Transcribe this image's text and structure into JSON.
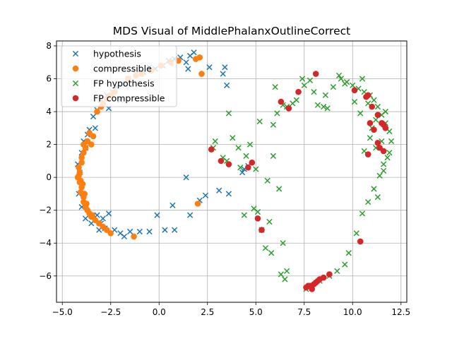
{
  "chart_data": {
    "type": "scatter",
    "title": "MDS Visual of MiddlePhalanxOutlineCorrect",
    "xlabel": "",
    "ylabel": "",
    "xlim": [
      -5.3,
      12.8
    ],
    "ylim": [
      -7.6,
      8.3
    ],
    "xticks": [
      -5.0,
      -2.5,
      0.0,
      2.5,
      5.0,
      7.5,
      10.0,
      12.5
    ],
    "xtick_labels": [
      "−5.0",
      "−2.5",
      "0.0",
      "2.5",
      "5.0",
      "7.5",
      "10.0",
      "12.5"
    ],
    "yticks": [
      -6,
      -4,
      -2,
      0,
      2,
      4,
      6,
      8
    ],
    "ytick_labels": [
      "−6",
      "−4",
      "−2",
      "0",
      "2",
      "4",
      "6",
      "8"
    ],
    "grid": true,
    "legend_position": "top-left",
    "series": [
      {
        "name": "hypothesis",
        "marker": "x",
        "color": "#1f77b4",
        "points": [
          [
            -4.2,
            0.8
          ],
          [
            -4.1,
            0.3
          ],
          [
            -4.0,
            -0.5
          ],
          [
            -4.15,
            -1.0
          ],
          [
            -4.0,
            1.5
          ],
          [
            -3.8,
            1.8
          ],
          [
            -3.9,
            2.2
          ],
          [
            -3.7,
            2.6
          ],
          [
            -3.6,
            2.9
          ],
          [
            -3.3,
            3.0
          ],
          [
            -3.4,
            3.7
          ],
          [
            -3.2,
            4.1
          ],
          [
            -3.0,
            4.7
          ],
          [
            -2.7,
            5.0
          ],
          [
            -2.6,
            4.2
          ],
          [
            -2.4,
            5.2
          ],
          [
            -2.2,
            5.5
          ],
          [
            -2.0,
            4.7
          ],
          [
            -1.9,
            5.7
          ],
          [
            -1.6,
            6.0
          ],
          [
            -1.2,
            6.3
          ],
          [
            -0.8,
            6.4
          ],
          [
            -0.5,
            6.7
          ],
          [
            -0.2,
            6.6
          ],
          [
            0.2,
            6.8
          ],
          [
            0.5,
            7.1
          ],
          [
            0.8,
            7.2
          ],
          [
            1.1,
            7.3
          ],
          [
            1.4,
            7.0
          ],
          [
            1.6,
            7.4
          ],
          [
            1.8,
            7.6
          ],
          [
            1.5,
            6.6
          ],
          [
            2.6,
            6.7
          ],
          [
            3.3,
            6.3
          ],
          [
            3.4,
            6.7
          ],
          [
            3.5,
            5.6
          ],
          [
            -3.8,
            -2.5
          ],
          [
            -3.5,
            -2.8
          ],
          [
            -3.2,
            -2.3
          ],
          [
            -3.0,
            -2.8
          ],
          [
            -2.8,
            -3.1
          ],
          [
            -2.6,
            -2.2
          ],
          [
            -2.3,
            -3.2
          ],
          [
            -2.0,
            -3.4
          ],
          [
            -1.8,
            -3.6
          ],
          [
            -1.5,
            -3.3
          ],
          [
            -1.0,
            -3.3
          ],
          [
            -0.5,
            -3.3
          ],
          [
            -0.1,
            -2.3
          ],
          [
            0.3,
            -3.2
          ],
          [
            0.8,
            -3.2
          ],
          [
            0.7,
            -1.7
          ],
          [
            1.6,
            -2.3
          ],
          [
            1.4,
            0.0
          ],
          [
            2.1,
            -1.4
          ],
          [
            2.4,
            -1.1
          ],
          [
            3.1,
            -0.8
          ],
          [
            3.6,
            -1.0
          ],
          [
            4.3,
            0.3
          ],
          [
            4.4,
            0.5
          ],
          [
            4.6,
            0.7
          ],
          [
            -3.1,
            -3.2
          ],
          [
            -2.9,
            -2.5
          ],
          [
            -4.0,
            -1.8
          ]
        ]
      },
      {
        "name": "compressible",
        "marker": "o",
        "color": "#ff7f0e",
        "points": [
          [
            -4.2,
            0.0
          ],
          [
            -4.1,
            0.3
          ],
          [
            -4.15,
            0.6
          ],
          [
            -4.0,
            0.9
          ],
          [
            -4.1,
            -0.3
          ],
          [
            -4.0,
            -0.6
          ],
          [
            -4.05,
            -0.9
          ],
          [
            -3.9,
            -1.2
          ],
          [
            -3.9,
            -1.5
          ],
          [
            -3.8,
            -1.8
          ],
          [
            -3.7,
            -2.0
          ],
          [
            -3.6,
            -2.2
          ],
          [
            -3.5,
            -2.4
          ],
          [
            -3.3,
            -2.6
          ],
          [
            -3.1,
            -2.8
          ],
          [
            -2.9,
            -3.0
          ],
          [
            -2.7,
            -3.2
          ],
          [
            -2.5,
            -3.4
          ],
          [
            -1.3,
            -3.6
          ],
          [
            -4.0,
            1.2
          ],
          [
            -3.9,
            1.5
          ],
          [
            -3.8,
            1.8
          ],
          [
            -3.9,
            2.0
          ],
          [
            -3.7,
            2.2
          ],
          [
            -3.5,
            2.0
          ],
          [
            -3.4,
            2.5
          ],
          [
            -3.6,
            2.7
          ],
          [
            -3.2,
            4.0
          ],
          [
            -3.0,
            4.3
          ],
          [
            -2.9,
            4.5
          ],
          [
            -2.7,
            4.8
          ],
          [
            -2.5,
            5.0
          ],
          [
            -2.3,
            5.2
          ],
          [
            -1.6,
            6.0
          ],
          [
            -1.2,
            6.2
          ],
          [
            -0.9,
            6.3
          ],
          [
            -0.4,
            6.5
          ],
          [
            0.1,
            6.8
          ],
          [
            0.6,
            7.0
          ],
          [
            1.0,
            7.1
          ],
          [
            1.9,
            7.2
          ],
          [
            2.1,
            7.3
          ],
          [
            2.2,
            6.3
          ],
          [
            2.0,
            -1.6
          ],
          [
            -4.15,
            0.1
          ],
          [
            -4.05,
            -0.2
          ],
          [
            -3.95,
            -0.4
          ],
          [
            -3.85,
            -1.0
          ],
          [
            -3.75,
            -1.6
          ],
          [
            -3.45,
            -2.3
          ]
        ]
      },
      {
        "name": "FP hypothesis",
        "marker": "x",
        "color": "#2ca02c",
        "points": [
          [
            2.8,
            1.8
          ],
          [
            2.9,
            2.2
          ],
          [
            3.3,
            1.2
          ],
          [
            3.5,
            1.0
          ],
          [
            3.6,
            3.9
          ],
          [
            3.8,
            2.4
          ],
          [
            4.1,
            1.8
          ],
          [
            4.2,
            0.6
          ],
          [
            4.5,
            1.3
          ],
          [
            4.7,
            2.0
          ],
          [
            5.0,
            0.5
          ],
          [
            4.9,
            -1.9
          ],
          [
            5.1,
            -2.1
          ],
          [
            5.3,
            -3.2
          ],
          [
            5.5,
            -4.3
          ],
          [
            5.8,
            -4.6
          ],
          [
            5.9,
            1.3
          ],
          [
            6.2,
            -0.7
          ],
          [
            6.4,
            -4.0
          ],
          [
            6.6,
            -5.7
          ],
          [
            6.3,
            -5.9
          ],
          [
            6.5,
            -6.2
          ],
          [
            6.1,
            3.9
          ],
          [
            6.4,
            4.4
          ],
          [
            5.9,
            3.2
          ],
          [
            5.6,
            -0.2
          ],
          [
            5.2,
            3.4
          ],
          [
            6.0,
            5.5
          ],
          [
            6.6,
            4.3
          ],
          [
            7.1,
            4.7
          ],
          [
            7.5,
            5.6
          ],
          [
            7.8,
            5.9
          ],
          [
            8.0,
            5.2
          ],
          [
            8.2,
            4.4
          ],
          [
            8.5,
            4.3
          ],
          [
            8.6,
            5.0
          ],
          [
            9.0,
            5.5
          ],
          [
            9.4,
            6.0
          ],
          [
            9.7,
            5.8
          ],
          [
            10.0,
            5.6
          ],
          [
            10.3,
            5.4
          ],
          [
            10.6,
            5.2
          ],
          [
            10.9,
            5.0
          ],
          [
            11.1,
            4.7
          ],
          [
            11.3,
            4.3
          ],
          [
            11.5,
            3.8
          ],
          [
            11.7,
            3.3
          ],
          [
            11.9,
            2.8
          ],
          [
            12.0,
            2.2
          ],
          [
            11.9,
            1.5
          ],
          [
            11.6,
            0.8
          ],
          [
            11.4,
            0.1
          ],
          [
            11.1,
            -0.7
          ],
          [
            10.8,
            -1.5
          ],
          [
            10.5,
            -2.2
          ],
          [
            10.2,
            -3.4
          ],
          [
            9.8,
            -4.6
          ],
          [
            9.6,
            -5.3
          ],
          [
            9.2,
            -5.7
          ],
          [
            8.8,
            -6.0
          ],
          [
            8.3,
            -6.3
          ],
          [
            7.9,
            -6.6
          ],
          [
            7.6,
            -6.8
          ],
          [
            10.9,
            2.4
          ],
          [
            11.2,
            1.8
          ],
          [
            11.5,
            2.2
          ],
          [
            10.6,
            1.6
          ],
          [
            10.4,
            3.9
          ],
          [
            10.1,
            4.6
          ],
          [
            11.7,
            4.0
          ],
          [
            11.2,
            3.5
          ],
          [
            11.6,
            0.4
          ],
          [
            11.3,
            -1.2
          ],
          [
            7.4,
            6.0
          ],
          [
            9.3,
            6.2
          ],
          [
            10.5,
            6.0
          ],
          [
            10.8,
            4.5
          ],
          [
            8.7,
            4.2
          ],
          [
            9.6,
            5.7
          ],
          [
            11.0,
            3.0
          ],
          [
            11.8,
            1.2
          ],
          [
            6.9,
            4.5
          ],
          [
            4.4,
            -2.3
          ],
          [
            5.7,
            -2.7
          ]
        ]
      },
      {
        "name": "FP compressible",
        "marker": "o",
        "color": "#d62728",
        "points": [
          [
            2.7,
            1.7
          ],
          [
            3.2,
            1.0
          ],
          [
            3.6,
            0.8
          ],
          [
            4.6,
            0.6
          ],
          [
            4.8,
            0.9
          ],
          [
            5.1,
            -2.5
          ],
          [
            5.3,
            -3.2
          ],
          [
            6.3,
            4.6
          ],
          [
            6.7,
            4.2
          ],
          [
            7.2,
            5.2
          ],
          [
            8.1,
            6.3
          ],
          [
            10.1,
            5.3
          ],
          [
            10.7,
            4.9
          ],
          [
            11.0,
            4.3
          ],
          [
            11.3,
            3.8
          ],
          [
            10.9,
            3.3
          ],
          [
            11.1,
            2.9
          ],
          [
            11.6,
            3.2
          ],
          [
            11.7,
            3.0
          ],
          [
            11.3,
            2.1
          ],
          [
            11.4,
            1.8
          ],
          [
            10.8,
            1.4
          ],
          [
            11.6,
            1.6
          ],
          [
            10.4,
            -3.9
          ],
          [
            7.6,
            -6.7
          ],
          [
            7.8,
            -6.6
          ],
          [
            8.0,
            -6.5
          ],
          [
            8.2,
            -6.3
          ],
          [
            8.5,
            -6.1
          ],
          [
            8.8,
            -5.9
          ],
          [
            7.9,
            -6.8
          ],
          [
            8.1,
            -6.4
          ],
          [
            8.3,
            -6.2
          ],
          [
            7.7,
            -6.6
          ],
          [
            10.8,
            5.0
          ],
          [
            11.5,
            3.3
          ]
        ]
      }
    ]
  }
}
